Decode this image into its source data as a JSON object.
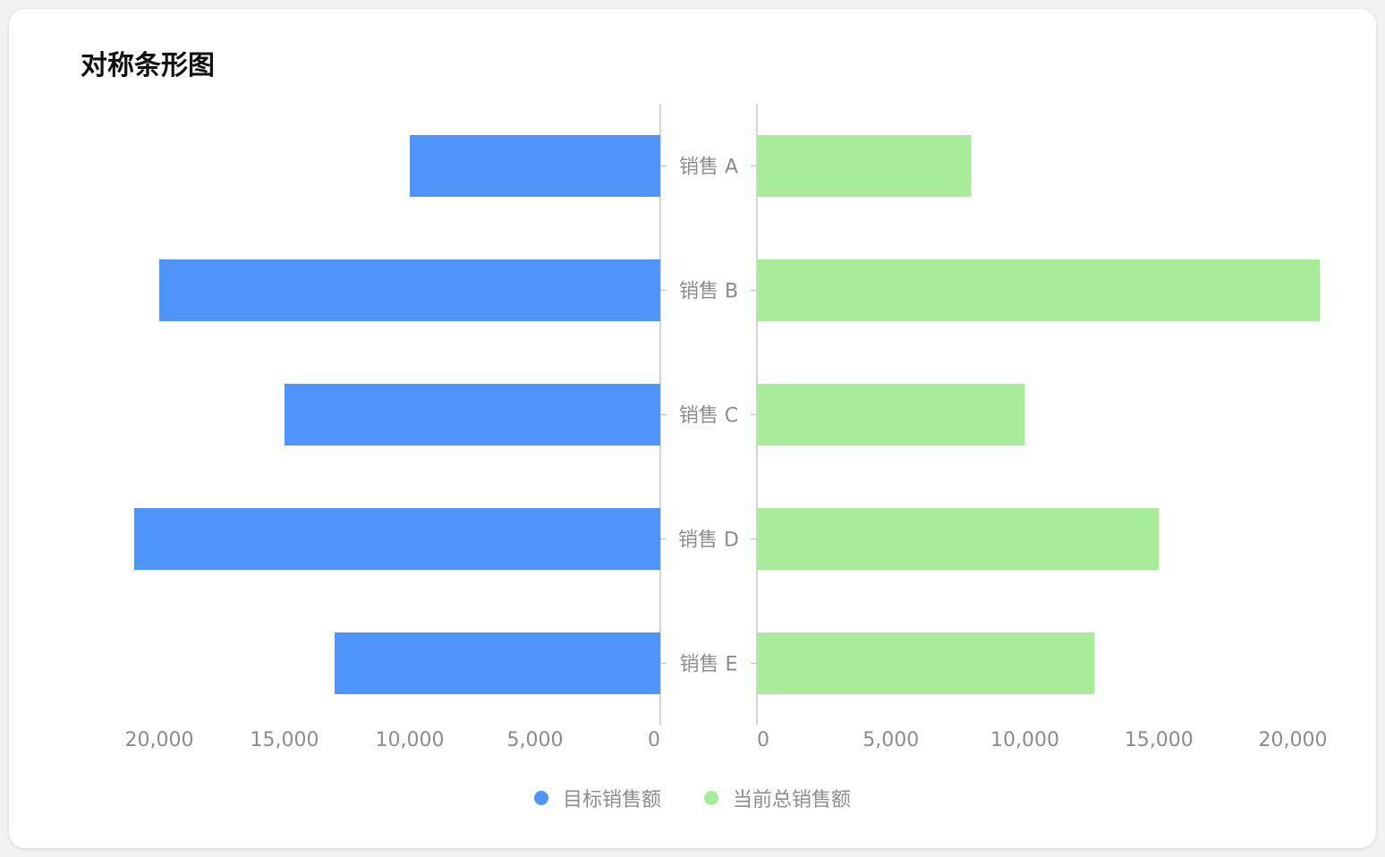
{
  "title": "对称条形图",
  "chart_data": {
    "type": "bar",
    "orientation": "horizontal-butterfly",
    "categories": [
      "销售 A",
      "销售 B",
      "销售 C",
      "销售 D",
      "销售 E"
    ],
    "series": [
      {
        "name": "目标销售额",
        "side": "left",
        "color": "#4f94f8",
        "values": [
          10000,
          20000,
          15000,
          21000,
          13000
        ]
      },
      {
        "name": "当前总销售额",
        "side": "right",
        "color": "#a8ec9b",
        "values": [
          8000,
          21000,
          10000,
          15000,
          12600
        ]
      }
    ],
    "xlim": [
      0,
      21000
    ],
    "ticks": [
      0,
      5000,
      10000,
      15000,
      20000
    ],
    "tick_labels": [
      "0",
      "5,000",
      "10,000",
      "15,000",
      "20,000"
    ],
    "legend_position": "bottom-center",
    "grid": false
  }
}
